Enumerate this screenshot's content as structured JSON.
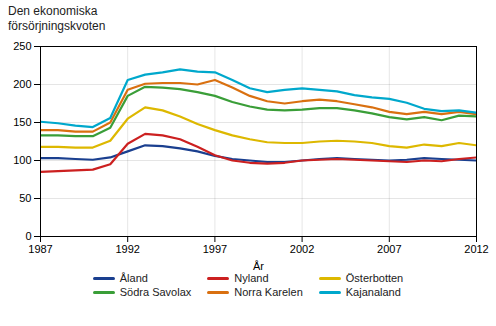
{
  "chart_data": {
    "type": "line",
    "title": "Den ekonomiska\nförsörjningskvoten",
    "xlabel": "År",
    "x": [
      1987,
      1988,
      1989,
      1990,
      1991,
      1992,
      1993,
      1994,
      1995,
      1996,
      1997,
      1998,
      1999,
      2000,
      2001,
      2002,
      2003,
      2004,
      2005,
      2006,
      2007,
      2008,
      2009,
      2010,
      2011,
      2012
    ],
    "series": [
      {
        "name": "Åland",
        "color": "#1a3f8f",
        "values": [
          103,
          103,
          102,
          101,
          104,
          112,
          120,
          119,
          116,
          112,
          106,
          102,
          100,
          98,
          98,
          100,
          102,
          103,
          102,
          101,
          100,
          101,
          103,
          102,
          101,
          100
        ]
      },
      {
        "name": "Nyland",
        "color": "#cc2020",
        "values": [
          85,
          86,
          87,
          88,
          95,
          122,
          135,
          133,
          128,
          118,
          107,
          100,
          97,
          96,
          97,
          100,
          101,
          102,
          101,
          100,
          99,
          98,
          100,
          99,
          102,
          104
        ]
      },
      {
        "name": "Österbotten",
        "color": "#ddb800",
        "values": [
          118,
          118,
          117,
          117,
          126,
          155,
          170,
          166,
          158,
          148,
          140,
          133,
          128,
          124,
          123,
          123,
          125,
          126,
          125,
          123,
          119,
          117,
          121,
          119,
          123,
          120
        ]
      },
      {
        "name": "Södra Savolax",
        "color": "#3a9e38",
        "values": [
          133,
          133,
          132,
          132,
          143,
          185,
          197,
          196,
          194,
          190,
          185,
          177,
          171,
          167,
          166,
          167,
          169,
          169,
          166,
          162,
          157,
          154,
          157,
          153,
          159,
          158
        ]
      },
      {
        "name": "Norra Karelen",
        "color": "#d97010",
        "values": [
          140,
          140,
          138,
          138,
          150,
          193,
          201,
          202,
          202,
          200,
          206,
          196,
          185,
          178,
          175,
          178,
          180,
          178,
          174,
          170,
          164,
          161,
          164,
          161,
          164,
          161
        ]
      },
      {
        "name": "Kajanaland",
        "color": "#00a8cc",
        "values": [
          151,
          149,
          146,
          144,
          156,
          206,
          213,
          216,
          220,
          217,
          216,
          206,
          195,
          190,
          193,
          195,
          193,
          191,
          186,
          183,
          181,
          176,
          168,
          165,
          166,
          163
        ]
      }
    ],
    "xlim": [
      1987,
      2012
    ],
    "xticks": [
      1987,
      1992,
      1997,
      2002,
      2007,
      2012
    ],
    "ylim": [
      0,
      250
    ],
    "yticks": [
      0,
      50,
      100,
      150,
      200,
      250
    ],
    "grid": true,
    "legend": "bottom"
  }
}
